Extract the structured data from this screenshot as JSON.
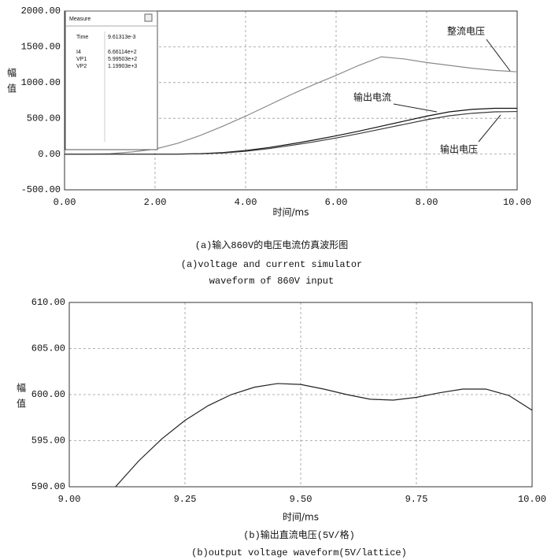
{
  "chart_data": [
    {
      "type": "line",
      "x_label": "时间/ms",
      "y_label": "幅值",
      "captions": [
        "(a)输入860V的电压电流仿真波形图",
        "(a)voltage and current simulator",
        "waveform of 860V input"
      ],
      "xlim": [
        0,
        10
      ],
      "xticks": [
        {
          "value": 0,
          "label": "0.00"
        },
        {
          "value": 2,
          "label": "2.00"
        },
        {
          "value": 4,
          "label": "4.00"
        },
        {
          "value": 6,
          "label": "6.00"
        },
        {
          "value": 8,
          "label": "8.00"
        },
        {
          "value": 10,
          "label": "10.00"
        }
      ],
      "ylim": [
        -500,
        2000
      ],
      "yticks": [
        {
          "value": -500,
          "label": "-500.00"
        },
        {
          "value": 0,
          "label": "0.00"
        },
        {
          "value": 500,
          "label": "500.00"
        },
        {
          "value": 1000,
          "label": "1000.00"
        },
        {
          "value": 1500,
          "label": "1500.00"
        },
        {
          "value": 2000,
          "label": "2000.00"
        }
      ],
      "grid": true,
      "x": [
        0,
        0.5,
        1,
        1.5,
        2,
        2.5,
        3,
        3.5,
        4,
        4.5,
        5,
        5.5,
        6,
        6.5,
        7,
        7.5,
        8,
        8.5,
        9,
        9.5,
        10
      ],
      "series": [
        {
          "name": "整流电压",
          "color": "#8a8a8a",
          "values": [
            0,
            0,
            5,
            30,
            70,
            150,
            260,
            390,
            530,
            680,
            830,
            970,
            1100,
            1240,
            1360,
            1330,
            1280,
            1240,
            1200,
            1170,
            1150
          ]
        },
        {
          "name": "输出电流",
          "color": "#111111",
          "values": [
            0,
            0,
            0,
            0,
            0,
            0,
            5,
            20,
            50,
            90,
            140,
            195,
            255,
            320,
            390,
            460,
            530,
            590,
            625,
            640,
            640
          ]
        },
        {
          "name": "输出电压",
          "color": "#3a3a3a",
          "values": [
            0,
            0,
            0,
            0,
            0,
            0,
            3,
            15,
            40,
            75,
            120,
            170,
            225,
            285,
            350,
            415,
            480,
            535,
            570,
            590,
            595
          ]
        }
      ],
      "measure_panel": {
        "title": "Measure",
        "rows": [
          [
            "Time",
            "9.61313e-3"
          ],
          [
            "I4",
            "6.66114e+2"
          ],
          [
            "VP1",
            "5.99503e+2"
          ],
          [
            "VP2",
            "1.19903e+3"
          ]
        ]
      }
    },
    {
      "type": "line",
      "x_label": "时间/ms",
      "y_label": "幅值",
      "captions": [
        "(b)输出直流电压(5V/格)",
        "(b)output voltage waveform(5V/lattice)"
      ],
      "xlim": [
        9,
        10
      ],
      "xticks": [
        {
          "value": 9,
          "label": "9.00"
        },
        {
          "value": 9.25,
          "label": "9.25"
        },
        {
          "value": 9.5,
          "label": "9.50"
        },
        {
          "value": 9.75,
          "label": "9.75"
        },
        {
          "value": 10,
          "label": "10.00"
        }
      ],
      "ylim": [
        590,
        610
      ],
      "yticks": [
        {
          "value": 590,
          "label": "590.00"
        },
        {
          "value": 595,
          "label": "595.00"
        },
        {
          "value": 600,
          "label": "600.00"
        },
        {
          "value": 605,
          "label": "605.00"
        },
        {
          "value": 610,
          "label": "610.00"
        }
      ],
      "grid": true,
      "x": [
        9.1,
        9.15,
        9.2,
        9.25,
        9.3,
        9.35,
        9.4,
        9.45,
        9.5,
        9.55,
        9.6,
        9.65,
        9.7,
        9.75,
        9.8,
        9.85,
        9.9,
        9.95,
        10.0
      ],
      "series": [
        {
          "color": "#222222",
          "values": [
            590.0,
            592.8,
            595.2,
            597.2,
            598.8,
            600.0,
            600.8,
            601.2,
            601.1,
            600.6,
            600.0,
            599.5,
            599.4,
            599.7,
            600.2,
            600.6,
            600.6,
            599.9,
            598.3
          ]
        }
      ]
    }
  ]
}
